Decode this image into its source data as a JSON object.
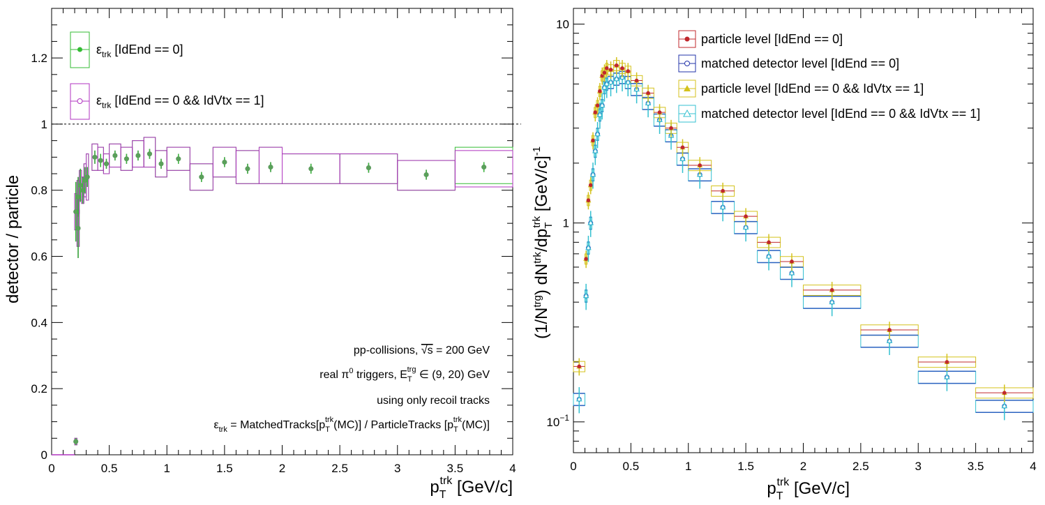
{
  "chart_data": [
    {
      "type": "scatter",
      "xlabel": "p_T^trk [GeV/c]",
      "xlabel_main": "p",
      "xlabel_sub": "T",
      "xlabel_sup": "trk",
      "xlabel_unit": "[GeV/c]",
      "ylabel": "detector / particle",
      "xlim": [
        0,
        4
      ],
      "ylim": [
        0,
        1.35
      ],
      "x_ticks": [
        "0",
        "0.5",
        "1",
        "1.5",
        "2",
        "2.5",
        "3",
        "3.5",
        "4"
      ],
      "y_ticks": [
        "0",
        "0.2",
        "0.4",
        "0.6",
        "0.8",
        "1",
        "1.2"
      ],
      "reference_line": 1,
      "legend": [
        {
          "symbol": "ε",
          "sub": "trk",
          "text": "[IdEnd == 0]",
          "color": "#33bb33",
          "marker": "filled-circle"
        },
        {
          "symbol": "ε",
          "sub": "trk",
          "text": "[IdEnd == 0 && IdVtx == 1]",
          "color": "#b033c0",
          "marker": "open-circle"
        }
      ],
      "annotations": {
        "line1_a": "pp-collisions, ",
        "line1_sqrt": "√s",
        "line1_b": " = 200 GeV",
        "line2_a": "real π",
        "line2_sup0": "0",
        "line2_b": " triggers, E",
        "line2_sub": "T",
        "line2_sup": "trg",
        "line2_c": " ∈ (9, 20) GeV",
        "line3": "using only recoil tracks",
        "line4_a": "ε",
        "line4_sub": "trk",
        "line4_b": " = MatchedTracks[p",
        "line4_sub2": "T",
        "line4_sup2": "trk",
        "line4_c": "(MC)] / ParticleTracks [p",
        "line4_sub3": "T",
        "line4_sup3": "trk",
        "line4_d": "(MC)]"
      },
      "series": [
        {
          "name": "ε_trk [IdEnd == 0]",
          "color": "#33bb33",
          "points": [
            {
              "x": 0.21,
              "y": 0.04,
              "xlo": 0.2,
              "xhi": 0.22,
              "err": 0.01,
              "syslo": 0.03,
              "syshi": 0.05
            },
            {
              "x": 0.21,
              "y": 0.735,
              "xlo": 0.2,
              "xhi": 0.22,
              "err": 0.09,
              "syslo": 0.68,
              "syshi": 0.79
            },
            {
              "x": 0.23,
              "y": 0.685,
              "xlo": 0.22,
              "xhi": 0.24,
              "err": 0.09,
              "syslo": 0.63,
              "syshi": 0.74
            },
            {
              "x": 0.23,
              "y": 0.78,
              "xlo": 0.22,
              "xhi": 0.24,
              "err": 0.06,
              "syslo": 0.73,
              "syshi": 0.83
            },
            {
              "x": 0.25,
              "y": 0.815,
              "xlo": 0.24,
              "xhi": 0.26,
              "err": 0.05,
              "syslo": 0.77,
              "syshi": 0.86
            },
            {
              "x": 0.27,
              "y": 0.8,
              "xlo": 0.26,
              "xhi": 0.28,
              "err": 0.04,
              "syslo": 0.76,
              "syshi": 0.84
            },
            {
              "x": 0.29,
              "y": 0.83,
              "xlo": 0.28,
              "xhi": 0.3,
              "err": 0.04,
              "syslo": 0.78,
              "syshi": 0.88
            },
            {
              "x": 0.31,
              "y": 0.84,
              "xlo": 0.3,
              "xhi": 0.32,
              "err": 0.03,
              "syslo": 0.77,
              "syshi": 0.91
            },
            {
              "x": 0.375,
              "y": 0.9,
              "xlo": 0.35,
              "xhi": 0.4,
              "err": 0.02,
              "syslo": 0.86,
              "syshi": 0.94
            },
            {
              "x": 0.425,
              "y": 0.89,
              "xlo": 0.4,
              "xhi": 0.45,
              "err": 0.02,
              "syslo": 0.86,
              "syshi": 0.93
            },
            {
              "x": 0.475,
              "y": 0.88,
              "xlo": 0.45,
              "xhi": 0.5,
              "err": 0.015,
              "syslo": 0.85,
              "syshi": 0.91
            },
            {
              "x": 0.55,
              "y": 0.905,
              "xlo": 0.5,
              "xhi": 0.6,
              "err": 0.015,
              "syslo": 0.87,
              "syshi": 0.94
            },
            {
              "x": 0.65,
              "y": 0.895,
              "xlo": 0.6,
              "xhi": 0.7,
              "err": 0.015,
              "syslo": 0.86,
              "syshi": 0.93
            },
            {
              "x": 0.75,
              "y": 0.905,
              "xlo": 0.7,
              "xhi": 0.8,
              "err": 0.015,
              "syslo": 0.87,
              "syshi": 0.95
            },
            {
              "x": 0.85,
              "y": 0.91,
              "xlo": 0.8,
              "xhi": 0.9,
              "err": 0.015,
              "syslo": 0.87,
              "syshi": 0.96
            },
            {
              "x": 0.95,
              "y": 0.88,
              "xlo": 0.9,
              "xhi": 1.0,
              "err": 0.015,
              "syslo": 0.84,
              "syshi": 0.92
            },
            {
              "x": 1.1,
              "y": 0.895,
              "xlo": 1.0,
              "xhi": 1.2,
              "err": 0.015,
              "syslo": 0.86,
              "syshi": 0.93
            },
            {
              "x": 1.3,
              "y": 0.84,
              "xlo": 1.2,
              "xhi": 1.4,
              "err": 0.015,
              "syslo": 0.8,
              "syshi": 0.88
            },
            {
              "x": 1.5,
              "y": 0.885,
              "xlo": 1.4,
              "xhi": 1.6,
              "err": 0.015,
              "syslo": 0.84,
              "syshi": 0.93
            },
            {
              "x": 1.7,
              "y": 0.865,
              "xlo": 1.6,
              "xhi": 1.8,
              "err": 0.015,
              "syslo": 0.82,
              "syshi": 0.92
            },
            {
              "x": 1.9,
              "y": 0.87,
              "xlo": 1.8,
              "xhi": 2.0,
              "err": 0.015,
              "syslo": 0.82,
              "syshi": 0.93
            },
            {
              "x": 2.25,
              "y": 0.865,
              "xlo": 2.0,
              "xhi": 2.5,
              "err": 0.015,
              "syslo": 0.82,
              "syshi": 0.91
            },
            {
              "x": 2.75,
              "y": 0.868,
              "xlo": 2.5,
              "xhi": 3.0,
              "err": 0.015,
              "syslo": 0.82,
              "syshi": 0.91
            },
            {
              "x": 3.25,
              "y": 0.847,
              "xlo": 3.0,
              "xhi": 3.5,
              "err": 0.015,
              "syslo": 0.8,
              "syshi": 0.89
            },
            {
              "x": 3.75,
              "y": 0.87,
              "xlo": 3.5,
              "xhi": 4.0,
              "err": 0.015,
              "syslo": 0.82,
              "syshi": 0.93
            }
          ]
        },
        {
          "name": "ε_trk [IdEnd == 0 && IdVtx == 1]",
          "color": "#b033c0",
          "points": [
            {
              "x": 0.21,
              "y": 0.04,
              "xlo": 0.2,
              "xhi": 0.22,
              "err": 0.01,
              "syslo": 0.03,
              "syshi": 0.05
            },
            {
              "x": 0.21,
              "y": 0.735,
              "xlo": 0.2,
              "xhi": 0.22,
              "err": 0.09,
              "syslo": 0.68,
              "syshi": 0.79
            },
            {
              "x": 0.23,
              "y": 0.685,
              "xlo": 0.22,
              "xhi": 0.24,
              "err": 0.09,
              "syslo": 0.63,
              "syshi": 0.74
            },
            {
              "x": 0.23,
              "y": 0.78,
              "xlo": 0.22,
              "xhi": 0.24,
              "err": 0.06,
              "syslo": 0.73,
              "syshi": 0.83
            },
            {
              "x": 0.25,
              "y": 0.815,
              "xlo": 0.24,
              "xhi": 0.26,
              "err": 0.05,
              "syslo": 0.77,
              "syshi": 0.86
            },
            {
              "x": 0.27,
              "y": 0.8,
              "xlo": 0.26,
              "xhi": 0.28,
              "err": 0.04,
              "syslo": 0.76,
              "syshi": 0.84
            },
            {
              "x": 0.29,
              "y": 0.83,
              "xlo": 0.28,
              "xhi": 0.3,
              "err": 0.04,
              "syslo": 0.78,
              "syshi": 0.88
            },
            {
              "x": 0.31,
              "y": 0.84,
              "xlo": 0.3,
              "xhi": 0.32,
              "err": 0.03,
              "syslo": 0.77,
              "syshi": 0.91
            },
            {
              "x": 0.375,
              "y": 0.9,
              "xlo": 0.35,
              "xhi": 0.4,
              "err": 0.02,
              "syslo": 0.86,
              "syshi": 0.94
            },
            {
              "x": 0.425,
              "y": 0.89,
              "xlo": 0.4,
              "xhi": 0.45,
              "err": 0.02,
              "syslo": 0.86,
              "syshi": 0.93
            },
            {
              "x": 0.475,
              "y": 0.88,
              "xlo": 0.45,
              "xhi": 0.5,
              "err": 0.015,
              "syslo": 0.85,
              "syshi": 0.91
            },
            {
              "x": 0.55,
              "y": 0.905,
              "xlo": 0.5,
              "xhi": 0.6,
              "err": 0.015,
              "syslo": 0.87,
              "syshi": 0.94
            },
            {
              "x": 0.65,
              "y": 0.895,
              "xlo": 0.6,
              "xhi": 0.7,
              "err": 0.015,
              "syslo": 0.86,
              "syshi": 0.93
            },
            {
              "x": 0.75,
              "y": 0.905,
              "xlo": 0.7,
              "xhi": 0.8,
              "err": 0.015,
              "syslo": 0.87,
              "syshi": 0.95
            },
            {
              "x": 0.85,
              "y": 0.91,
              "xlo": 0.8,
              "xhi": 0.9,
              "err": 0.015,
              "syslo": 0.87,
              "syshi": 0.96
            },
            {
              "x": 0.95,
              "y": 0.88,
              "xlo": 0.9,
              "xhi": 1.0,
              "err": 0.015,
              "syslo": 0.84,
              "syshi": 0.92
            },
            {
              "x": 1.1,
              "y": 0.895,
              "xlo": 1.0,
              "xhi": 1.2,
              "err": 0.015,
              "syslo": 0.86,
              "syshi": 0.93
            },
            {
              "x": 1.3,
              "y": 0.84,
              "xlo": 1.2,
              "xhi": 1.4,
              "err": 0.015,
              "syslo": 0.8,
              "syshi": 0.88
            },
            {
              "x": 1.5,
              "y": 0.885,
              "xlo": 1.4,
              "xhi": 1.6,
              "err": 0.015,
              "syslo": 0.84,
              "syshi": 0.93
            },
            {
              "x": 1.7,
              "y": 0.865,
              "xlo": 1.6,
              "xhi": 1.8,
              "err": 0.015,
              "syslo": 0.82,
              "syshi": 0.92
            },
            {
              "x": 1.9,
              "y": 0.87,
              "xlo": 1.8,
              "xhi": 2.0,
              "err": 0.015,
              "syslo": 0.82,
              "syshi": 0.93
            },
            {
              "x": 2.25,
              "y": 0.865,
              "xlo": 2.0,
              "xhi": 2.5,
              "err": 0.015,
              "syslo": 0.82,
              "syshi": 0.91
            },
            {
              "x": 2.75,
              "y": 0.868,
              "xlo": 2.5,
              "xhi": 3.0,
              "err": 0.015,
              "syslo": 0.82,
              "syshi": 0.91
            },
            {
              "x": 3.25,
              "y": 0.847,
              "xlo": 3.0,
              "xhi": 3.5,
              "err": 0.015,
              "syslo": 0.8,
              "syshi": 0.89
            },
            {
              "x": 3.75,
              "y": 0.87,
              "xlo": 3.5,
              "xhi": 4.0,
              "err": 0.015,
              "syslo": 0.81,
              "syshi": 0.92
            }
          ]
        }
      ]
    },
    {
      "type": "scatter",
      "xlabel": "p_T^trk [GeV/c]",
      "xlabel_main": "p",
      "xlabel_sub": "T",
      "xlabel_sup": "trk",
      "xlabel_unit": "[GeV/c]",
      "ylabel": "(1/N^trg) dN^trk/dp_T^trk [GeV/c]^-1",
      "ylabel_parts": {
        "a": "(1/N",
        "sup1": "trg",
        "b": ") dN",
        "sup2": "trk",
        "c": "/dp",
        "sub3": "T",
        "sup3": "trk",
        "d": " [GeV/c]",
        "sup4": "-1"
      },
      "xlim": [
        0,
        4
      ],
      "ylim": [
        0.07,
        12
      ],
      "y_scale": "log",
      "x_ticks": [
        "0",
        "0.5",
        "1",
        "1.5",
        "2",
        "2.5",
        "3",
        "3.5",
        "4"
      ],
      "y_tick_labels": [
        {
          "value": 0.1,
          "base": "10",
          "exp": "−1"
        },
        {
          "value": 1,
          "base": "1",
          "exp": ""
        },
        {
          "value": 10,
          "base": "10",
          "exp": ""
        }
      ],
      "legend": [
        {
          "text": "particle level [IdEnd == 0]",
          "color": "#c0282d",
          "marker": "filled-circle"
        },
        {
          "text": "matched detector level [IdEnd == 0]",
          "color": "#2233aa",
          "marker": "open-circle"
        },
        {
          "text": "particle level [IdEnd == 0 && IdVtx == 1]",
          "color": "#d4c21c",
          "marker": "filled-triangle"
        },
        {
          "text": "matched detector level [IdEnd == 0 && IdVtx == 1]",
          "color": "#33c0d0",
          "marker": "open-triangle"
        }
      ],
      "bins": [
        {
          "xlo": 0.0,
          "xhi": 0.1,
          "particle": 0.19,
          "detector": 0.13
        },
        {
          "xlo": 0.1,
          "xhi": 0.12,
          "particle": 0.66,
          "detector": 0.43
        },
        {
          "xlo": 0.12,
          "xhi": 0.14,
          "particle": 1.3,
          "detector": 0.75
        },
        {
          "xlo": 0.14,
          "xhi": 0.16,
          "particle": 1.55,
          "detector": 1.0
        },
        {
          "xlo": 0.16,
          "xhi": 0.18,
          "particle": 2.6,
          "detector": 1.75
        },
        {
          "xlo": 0.18,
          "xhi": 0.2,
          "particle": 3.6,
          "detector": 2.3
        },
        {
          "xlo": 0.2,
          "xhi": 0.22,
          "particle": 3.9,
          "detector": 2.8
        },
        {
          "xlo": 0.22,
          "xhi": 0.24,
          "particle": 4.6,
          "detector": 3.5
        },
        {
          "xlo": 0.24,
          "xhi": 0.26,
          "particle": 5.5,
          "detector": 3.9
        },
        {
          "xlo": 0.26,
          "xhi": 0.28,
          "particle": 5.7,
          "detector": 4.8
        },
        {
          "xlo": 0.28,
          "xhi": 0.3,
          "particle": 6.0,
          "detector": 5.0
        },
        {
          "xlo": 0.3,
          "xhi": 0.35,
          "particle": 5.9,
          "detector": 5.1
        },
        {
          "xlo": 0.35,
          "xhi": 0.4,
          "particle": 6.2,
          "detector": 5.3
        },
        {
          "xlo": 0.4,
          "xhi": 0.45,
          "particle": 6.0,
          "detector": 5.4
        },
        {
          "xlo": 0.45,
          "xhi": 0.5,
          "particle": 5.8,
          "detector": 5.1
        },
        {
          "xlo": 0.5,
          "xhi": 0.6,
          "particle": 5.2,
          "detector": 4.7
        },
        {
          "xlo": 0.6,
          "xhi": 0.7,
          "particle": 4.5,
          "detector": 4.0
        },
        {
          "xlo": 0.7,
          "xhi": 0.8,
          "particle": 3.6,
          "detector": 3.3
        },
        {
          "xlo": 0.8,
          "xhi": 0.9,
          "particle": 3.0,
          "detector": 2.75
        },
        {
          "xlo": 0.9,
          "xhi": 1.0,
          "particle": 2.4,
          "detector": 2.1
        },
        {
          "xlo": 1.0,
          "xhi": 1.2,
          "particle": 1.95,
          "detector": 1.75
        },
        {
          "xlo": 1.2,
          "xhi": 1.4,
          "particle": 1.45,
          "detector": 1.2
        },
        {
          "xlo": 1.4,
          "xhi": 1.6,
          "particle": 1.08,
          "detector": 0.95
        },
        {
          "xlo": 1.6,
          "xhi": 1.8,
          "particle": 0.8,
          "detector": 0.68
        },
        {
          "xlo": 1.8,
          "xhi": 2.0,
          "particle": 0.64,
          "detector": 0.56
        },
        {
          "xlo": 2.0,
          "xhi": 2.5,
          "particle": 0.46,
          "detector": 0.4
        },
        {
          "xlo": 2.5,
          "xhi": 3.0,
          "particle": 0.29,
          "detector": 0.255
        },
        {
          "xlo": 3.0,
          "xhi": 3.5,
          "particle": 0.2,
          "detector": 0.168
        },
        {
          "xlo": 3.5,
          "xhi": 4.0,
          "particle": 0.14,
          "detector": 0.12
        }
      ]
    }
  ]
}
